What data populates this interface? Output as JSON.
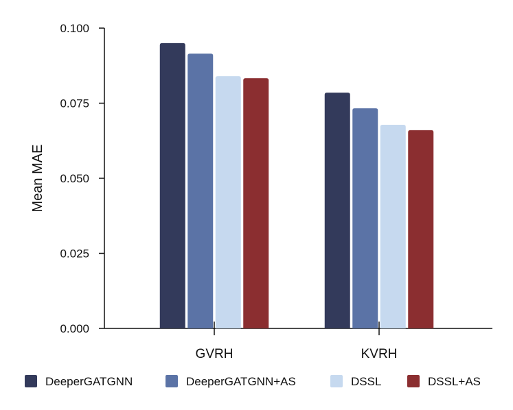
{
  "chart_data": {
    "type": "bar",
    "title": "",
    "xlabel": "",
    "ylabel": "Mean MAE",
    "ylim": [
      0,
      0.1
    ],
    "yticks": [
      "0.000",
      "0.025",
      "0.050",
      "0.075",
      "0.100"
    ],
    "categories": [
      "GVRH",
      "KVRH"
    ],
    "series": [
      {
        "name": "DeeperGATGNN",
        "color": "#333a5b",
        "values": [
          0.095,
          0.0785
        ]
      },
      {
        "name": "DeeperGATGNN+AS",
        "color": "#5b73a6",
        "values": [
          0.0915,
          0.0733
        ]
      },
      {
        "name": "DSSL",
        "color": "#c6d9ef",
        "values": [
          0.084,
          0.0678
        ]
      },
      {
        "name": "DSSL+AS",
        "color": "#8b2e30",
        "values": [
          0.0833,
          0.066
        ]
      }
    ],
    "legend_position": "bottom",
    "grid": false
  }
}
